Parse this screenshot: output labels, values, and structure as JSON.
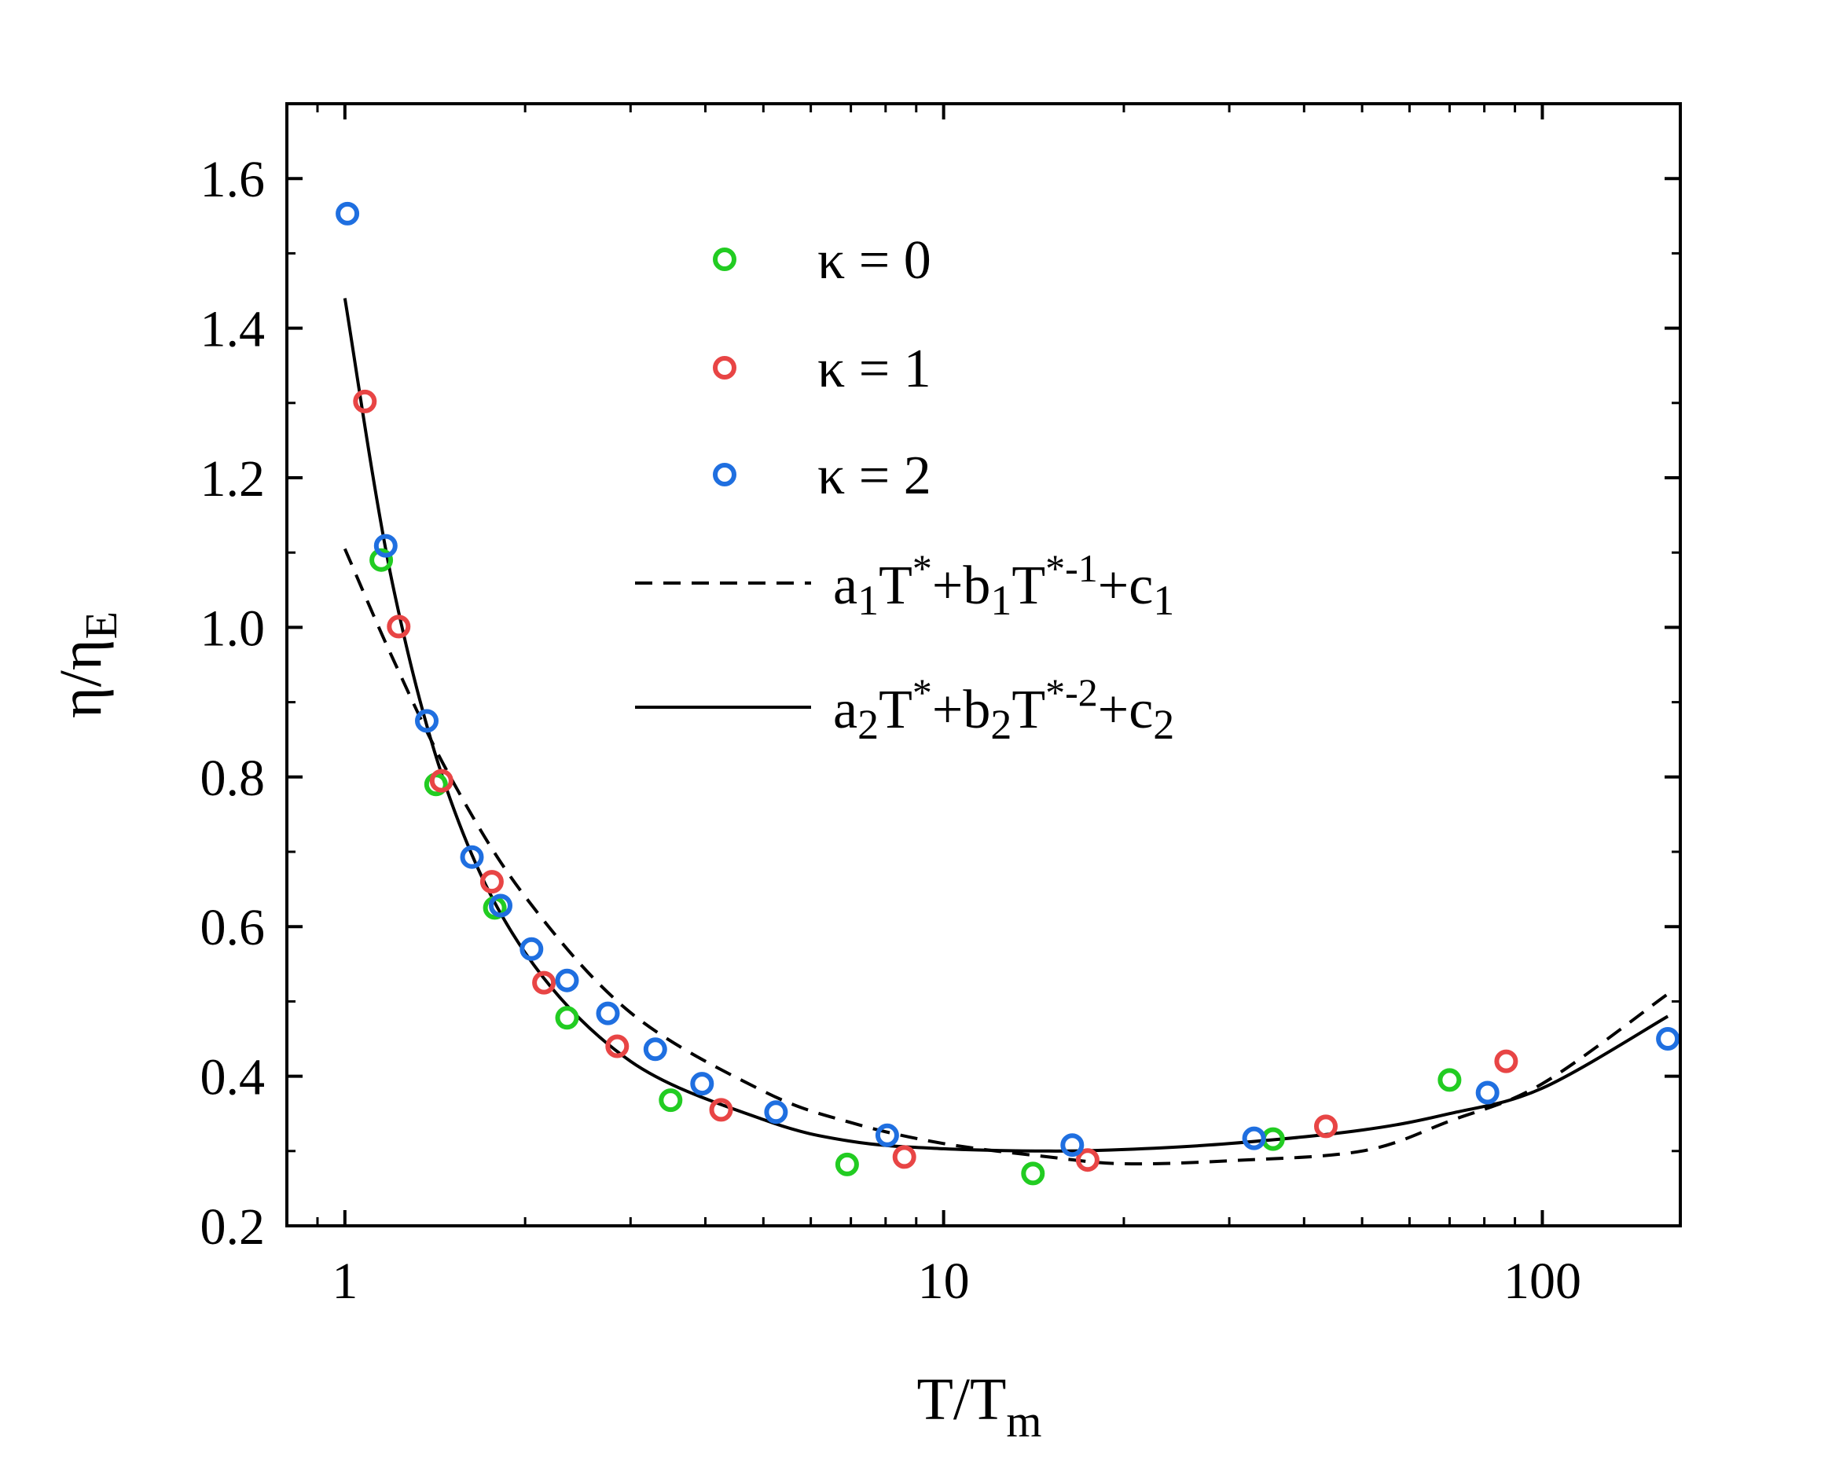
{
  "chart_data": {
    "type": "scatter",
    "title": "",
    "xlabel": {
      "main": "T/T",
      "sub": "m"
    },
    "ylabel": {
      "main": "η/η",
      "sub": "E"
    },
    "xscale": "log",
    "xlim": [
      0.8,
      170
    ],
    "ylim": [
      0.2,
      1.7
    ],
    "xticks": [
      {
        "value": 1,
        "label": "1"
      },
      {
        "value": 10,
        "label": "10"
      },
      {
        "value": 100,
        "label": "100"
      }
    ],
    "yticks": [
      {
        "value": 0.2,
        "label": "0.2"
      },
      {
        "value": 0.4,
        "label": "0.4"
      },
      {
        "value": 0.6,
        "label": "0.6"
      },
      {
        "value": 0.8,
        "label": "0.8"
      },
      {
        "value": 1.0,
        "label": "1.0"
      },
      {
        "value": 1.2,
        "label": "1.2"
      },
      {
        "value": 1.4,
        "label": "1.4"
      },
      {
        "value": 1.6,
        "label": "1.6"
      }
    ],
    "legend_position": "upper-center",
    "series": [
      {
        "name": "κ = 0",
        "kind": "scatter",
        "color": "#22cc22",
        "points": [
          [
            1.15,
            1.09
          ],
          [
            1.42,
            0.79
          ],
          [
            1.78,
            0.625
          ],
          [
            2.35,
            0.478
          ],
          [
            3.5,
            0.368
          ],
          [
            6.9,
            0.282
          ],
          [
            14.1,
            0.27
          ],
          [
            35.5,
            0.316
          ],
          [
            70,
            0.395
          ]
        ]
      },
      {
        "name": "κ = 1",
        "kind": "scatter",
        "color": "#e84545",
        "points": [
          [
            1.08,
            1.302
          ],
          [
            1.23,
            1.001
          ],
          [
            1.45,
            0.795
          ],
          [
            1.76,
            0.66
          ],
          [
            2.15,
            0.525
          ],
          [
            2.85,
            0.44
          ],
          [
            4.25,
            0.355
          ],
          [
            8.6,
            0.292
          ],
          [
            17.4,
            0.288
          ],
          [
            43.5,
            0.333
          ],
          [
            87,
            0.42
          ]
        ]
      },
      {
        "name": "κ = 2",
        "kind": "scatter",
        "color": "#1f6fe0",
        "points": [
          [
            1.01,
            1.553
          ],
          [
            1.17,
            1.109
          ],
          [
            1.37,
            0.875
          ],
          [
            1.63,
            0.693
          ],
          [
            1.82,
            0.628
          ],
          [
            2.05,
            0.57
          ],
          [
            2.35,
            0.528
          ],
          [
            2.75,
            0.484
          ],
          [
            3.3,
            0.436
          ],
          [
            3.95,
            0.39
          ],
          [
            5.25,
            0.352
          ],
          [
            8.05,
            0.321
          ],
          [
            16.4,
            0.308
          ],
          [
            33,
            0.317
          ],
          [
            81,
            0.378
          ],
          [
            162,
            0.45
          ]
        ]
      },
      {
        "name": "a1T*+b1T*-1+c1",
        "kind": "line",
        "style": "dashed",
        "color": "#000000",
        "x_range": [
          1,
          162
        ],
        "points": [
          [
            1,
            1.105
          ],
          [
            1.2,
            0.96
          ],
          [
            1.5,
            0.8
          ],
          [
            2,
            0.64
          ],
          [
            3,
            0.485
          ],
          [
            5,
            0.38
          ],
          [
            7,
            0.338
          ],
          [
            10,
            0.31
          ],
          [
            15,
            0.292
          ],
          [
            20,
            0.283
          ],
          [
            30,
            0.287
          ],
          [
            50,
            0.3
          ],
          [
            70,
            0.34
          ],
          [
            100,
            0.39
          ],
          [
            162,
            0.51
          ]
        ]
      },
      {
        "name": "a2T*+b2T*-2+c2",
        "kind": "line",
        "style": "solid",
        "color": "#000000",
        "x_range": [
          1,
          162
        ],
        "points": [
          [
            1,
            1.44
          ],
          [
            1.2,
            1.06
          ],
          [
            1.5,
            0.77
          ],
          [
            2,
            0.565
          ],
          [
            3,
            0.42
          ],
          [
            5,
            0.342
          ],
          [
            7,
            0.313
          ],
          [
            10,
            0.303
          ],
          [
            15,
            0.3
          ],
          [
            20,
            0.302
          ],
          [
            30,
            0.31
          ],
          [
            50,
            0.328
          ],
          [
            70,
            0.35
          ],
          [
            100,
            0.384
          ],
          [
            162,
            0.48
          ]
        ]
      }
    ],
    "legend": [
      {
        "kind": "marker",
        "color": "#22cc22",
        "label": "κ = 0"
      },
      {
        "kind": "marker",
        "color": "#e84545",
        "label": "κ = 1"
      },
      {
        "kind": "marker",
        "color": "#1f6fe0",
        "label": "κ = 2"
      },
      {
        "kind": "dashed",
        "color": "#000000",
        "parts": [
          [
            "a",
            ""
          ],
          [
            "1",
            "sub"
          ],
          [
            "T",
            ""
          ],
          [
            "*",
            "sup"
          ],
          [
            "+b",
            ""
          ],
          [
            "1",
            "sub"
          ],
          [
            "T",
            ""
          ],
          [
            "*-1",
            "sup"
          ],
          [
            "+c",
            ""
          ],
          [
            "1",
            "sub"
          ]
        ]
      },
      {
        "kind": "solid",
        "color": "#000000",
        "parts": [
          [
            "a",
            ""
          ],
          [
            "2",
            "sub"
          ],
          [
            "T",
            ""
          ],
          [
            "*",
            "sup"
          ],
          [
            "+b",
            ""
          ],
          [
            "2",
            "sub"
          ],
          [
            "T",
            ""
          ],
          [
            "*-2",
            "sup"
          ],
          [
            "+c",
            ""
          ],
          [
            "2",
            "sub"
          ]
        ]
      }
    ]
  }
}
